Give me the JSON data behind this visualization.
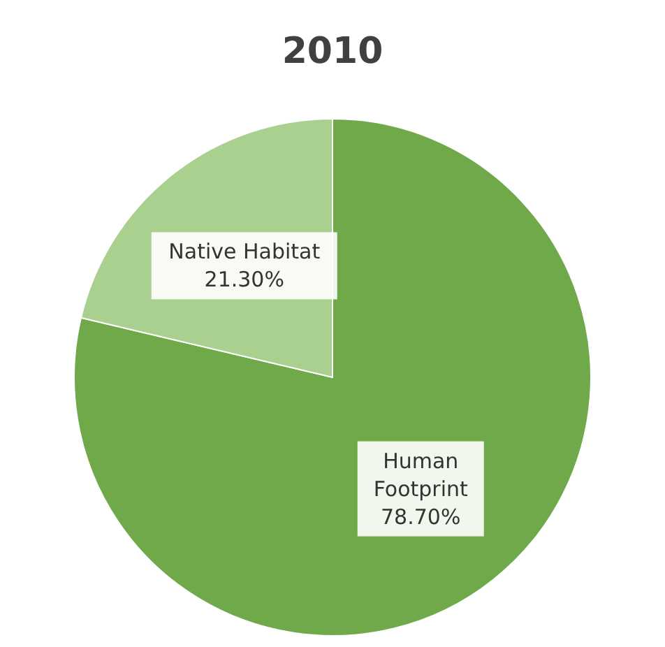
{
  "chart_data": {
    "type": "pie",
    "title": "2010",
    "categories": [
      "Human Footprint",
      "Native Habitat"
    ],
    "values": [
      78.7,
      21.3
    ],
    "colors": [
      "#6fa94a",
      "#a9d08e"
    ],
    "value_labels": [
      "78.70%",
      "21.30%"
    ]
  }
}
